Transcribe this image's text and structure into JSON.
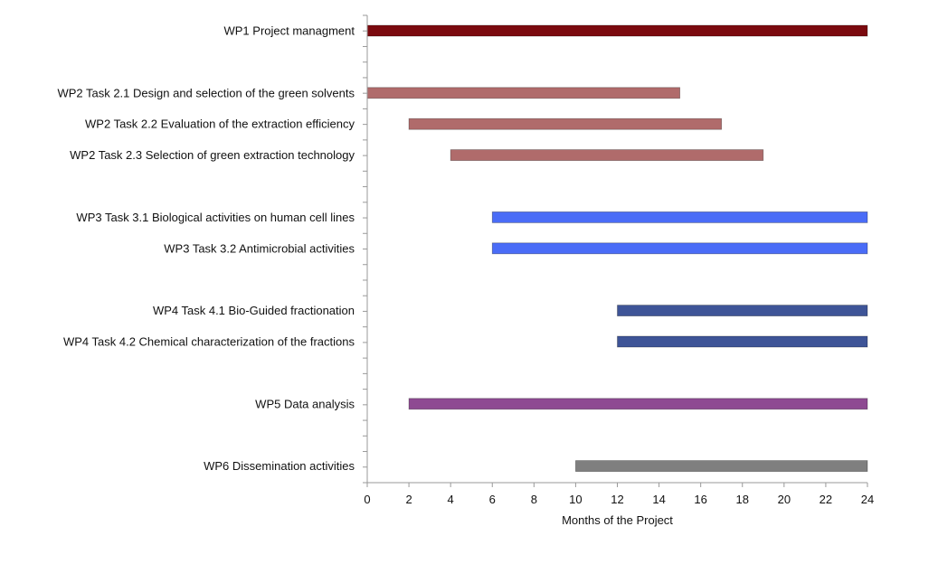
{
  "chart_data": {
    "type": "bar",
    "orientation": "horizontal-gantt",
    "title": "",
    "xlabel": "Months of the Project",
    "ylabel": "",
    "xlim": [
      0,
      24
    ],
    "xticks": [
      0,
      2,
      4,
      6,
      8,
      10,
      12,
      14,
      16,
      18,
      20,
      22,
      24
    ],
    "grid": false,
    "tasks": [
      {
        "label": "WP1 Project managment",
        "start": 0,
        "end": 24,
        "color": "#7B0A0F",
        "slot": 0
      },
      {
        "label": "WP2 Task 2.1  Design and selection of the green solvents",
        "start": 0,
        "end": 15,
        "color": "#B06B6B",
        "slot": 2
      },
      {
        "label": "WP2 Task 2.2  Evaluation of the extraction efficiency",
        "start": 2,
        "end": 17,
        "color": "#B06B6B",
        "slot": 3
      },
      {
        "label": "WP2 Task 2.3 Selection of green extraction technology",
        "start": 4,
        "end": 19,
        "color": "#B06B6B",
        "slot": 4
      },
      {
        "label": "WP3 Task 3.1 Biological activities on human cell lines",
        "start": 6,
        "end": 24,
        "color": "#4A6CF7",
        "slot": 6
      },
      {
        "label": "WP3 Task 3.2 Antimicrobial activities",
        "start": 6,
        "end": 24,
        "color": "#4A6CF7",
        "slot": 7
      },
      {
        "label": "WP4 Task 4.1 Bio-Guided fractionation",
        "start": 12,
        "end": 24,
        "color": "#3E5497",
        "slot": 9
      },
      {
        "label": "WP4 Task 4.2 Chemical characterization of the fractions",
        "start": 12,
        "end": 24,
        "color": "#3E5497",
        "slot": 10
      },
      {
        "label": "WP5 Data analysis",
        "start": 2,
        "end": 24,
        "color": "#8E4A92",
        "slot": 12
      },
      {
        "label": "WP6 Dissemination activities",
        "start": 10,
        "end": 24,
        "color": "#7F7F7F",
        "slot": 14
      }
    ]
  }
}
